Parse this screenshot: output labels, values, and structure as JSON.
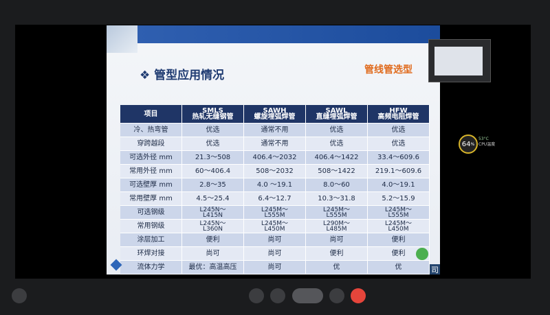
{
  "slide": {
    "title": "管型应用情况",
    "tag": "管线管选型",
    "corner": "司"
  },
  "table": {
    "header": [
      [
        "项目"
      ],
      [
        "SMLS",
        "热轧无缝钢管"
      ],
      [
        "SAWH",
        "螺旋埋弧焊管"
      ],
      [
        "SAWL",
        "直缝埋弧焊管"
      ],
      [
        "HFW",
        "高频电阻焊管"
      ]
    ],
    "rows": [
      [
        "冷、热弯管",
        "优选",
        "通常不用",
        "优选",
        "优选"
      ],
      [
        "穿跨越段",
        "优选",
        "通常不用",
        "优选",
        "优选"
      ],
      [
        "可选外径 mm",
        "21.3～508",
        "406.4～2032",
        "406.4～1422",
        "33.4～609.6"
      ],
      [
        "常用外径 mm",
        "60～406.4",
        "508～2032",
        "508～1422",
        "219.1～609.6"
      ],
      [
        "可选壁厚 mm",
        "2.8～35",
        "4.0 ～19.1",
        "8.0～60",
        "4.0～19.1"
      ],
      [
        "常用壁厚 mm",
        "4.5～25.4",
        "6.4～12.7",
        "10.3～31.8",
        "5.2～15.9"
      ],
      [
        "可选钢级",
        [
          "L245N～",
          "L415N"
        ],
        [
          "L245M～",
          "L555M"
        ],
        [
          "L245M～",
          "L555M"
        ],
        [
          "L245M～",
          "L555M"
        ]
      ],
      [
        "常用钢级",
        [
          "L245N～",
          "L360N"
        ],
        [
          "L245M～",
          "L450M"
        ],
        [
          "L290M～",
          "L485M"
        ],
        [
          "L245M～",
          "L450M"
        ]
      ],
      [
        "涂层加工",
        "便利",
        "尚可",
        "尚可",
        "便利"
      ],
      [
        "环焊对接",
        "尚可",
        "尚可",
        "便利",
        "便利"
      ],
      [
        "流体力学",
        "最优：高温高压",
        "尚可",
        "优",
        "优"
      ]
    ]
  },
  "monitor": {
    "usage": "64",
    "unit": "%",
    "temp": "53°C",
    "temp_label": "CPU温度"
  }
}
